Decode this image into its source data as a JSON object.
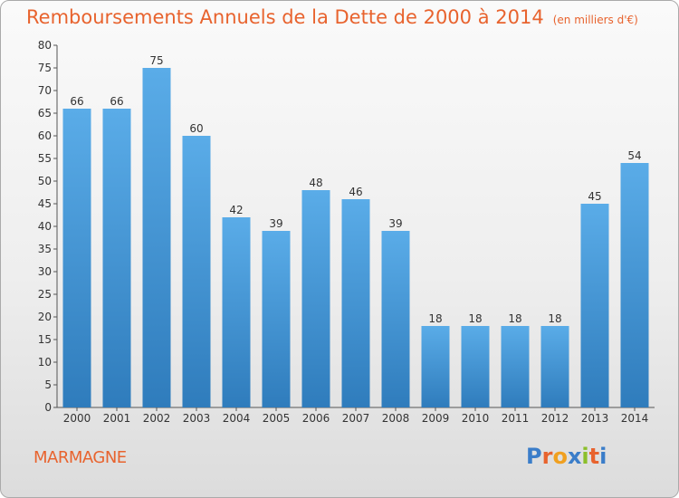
{
  "header": {
    "title": "Remboursements Annuels de la Dette de 2000 à 2014",
    "unit": "(en milliers d'€)"
  },
  "footer": {
    "commune": "MARMAGNE",
    "brand": "Proxiti",
    "brand_colors": [
      "#3a7dc9",
      "#e8632e",
      "#f0a020",
      "#3a7dc9",
      "#8bbf2a",
      "#e8632e",
      "#3a7dc9"
    ]
  },
  "colors": {
    "accent": "#e8632e",
    "bar_top": "#5aace8",
    "bar_bottom": "#2f7cbc"
  },
  "chart_data": {
    "type": "bar",
    "title": "Remboursements Annuels de la Dette de 2000 à 2014",
    "xlabel": "",
    "ylabel": "",
    "ylim": [
      0,
      80
    ],
    "ytick_step": 5,
    "grid": false,
    "categories": [
      "2000",
      "2001",
      "2002",
      "2003",
      "2004",
      "2005",
      "2006",
      "2007",
      "2008",
      "2009",
      "2010",
      "2011",
      "2012",
      "2013",
      "2014"
    ],
    "values": [
      66,
      66,
      75,
      60,
      42,
      39,
      48,
      46,
      39,
      18,
      18,
      18,
      18,
      45,
      54
    ]
  }
}
